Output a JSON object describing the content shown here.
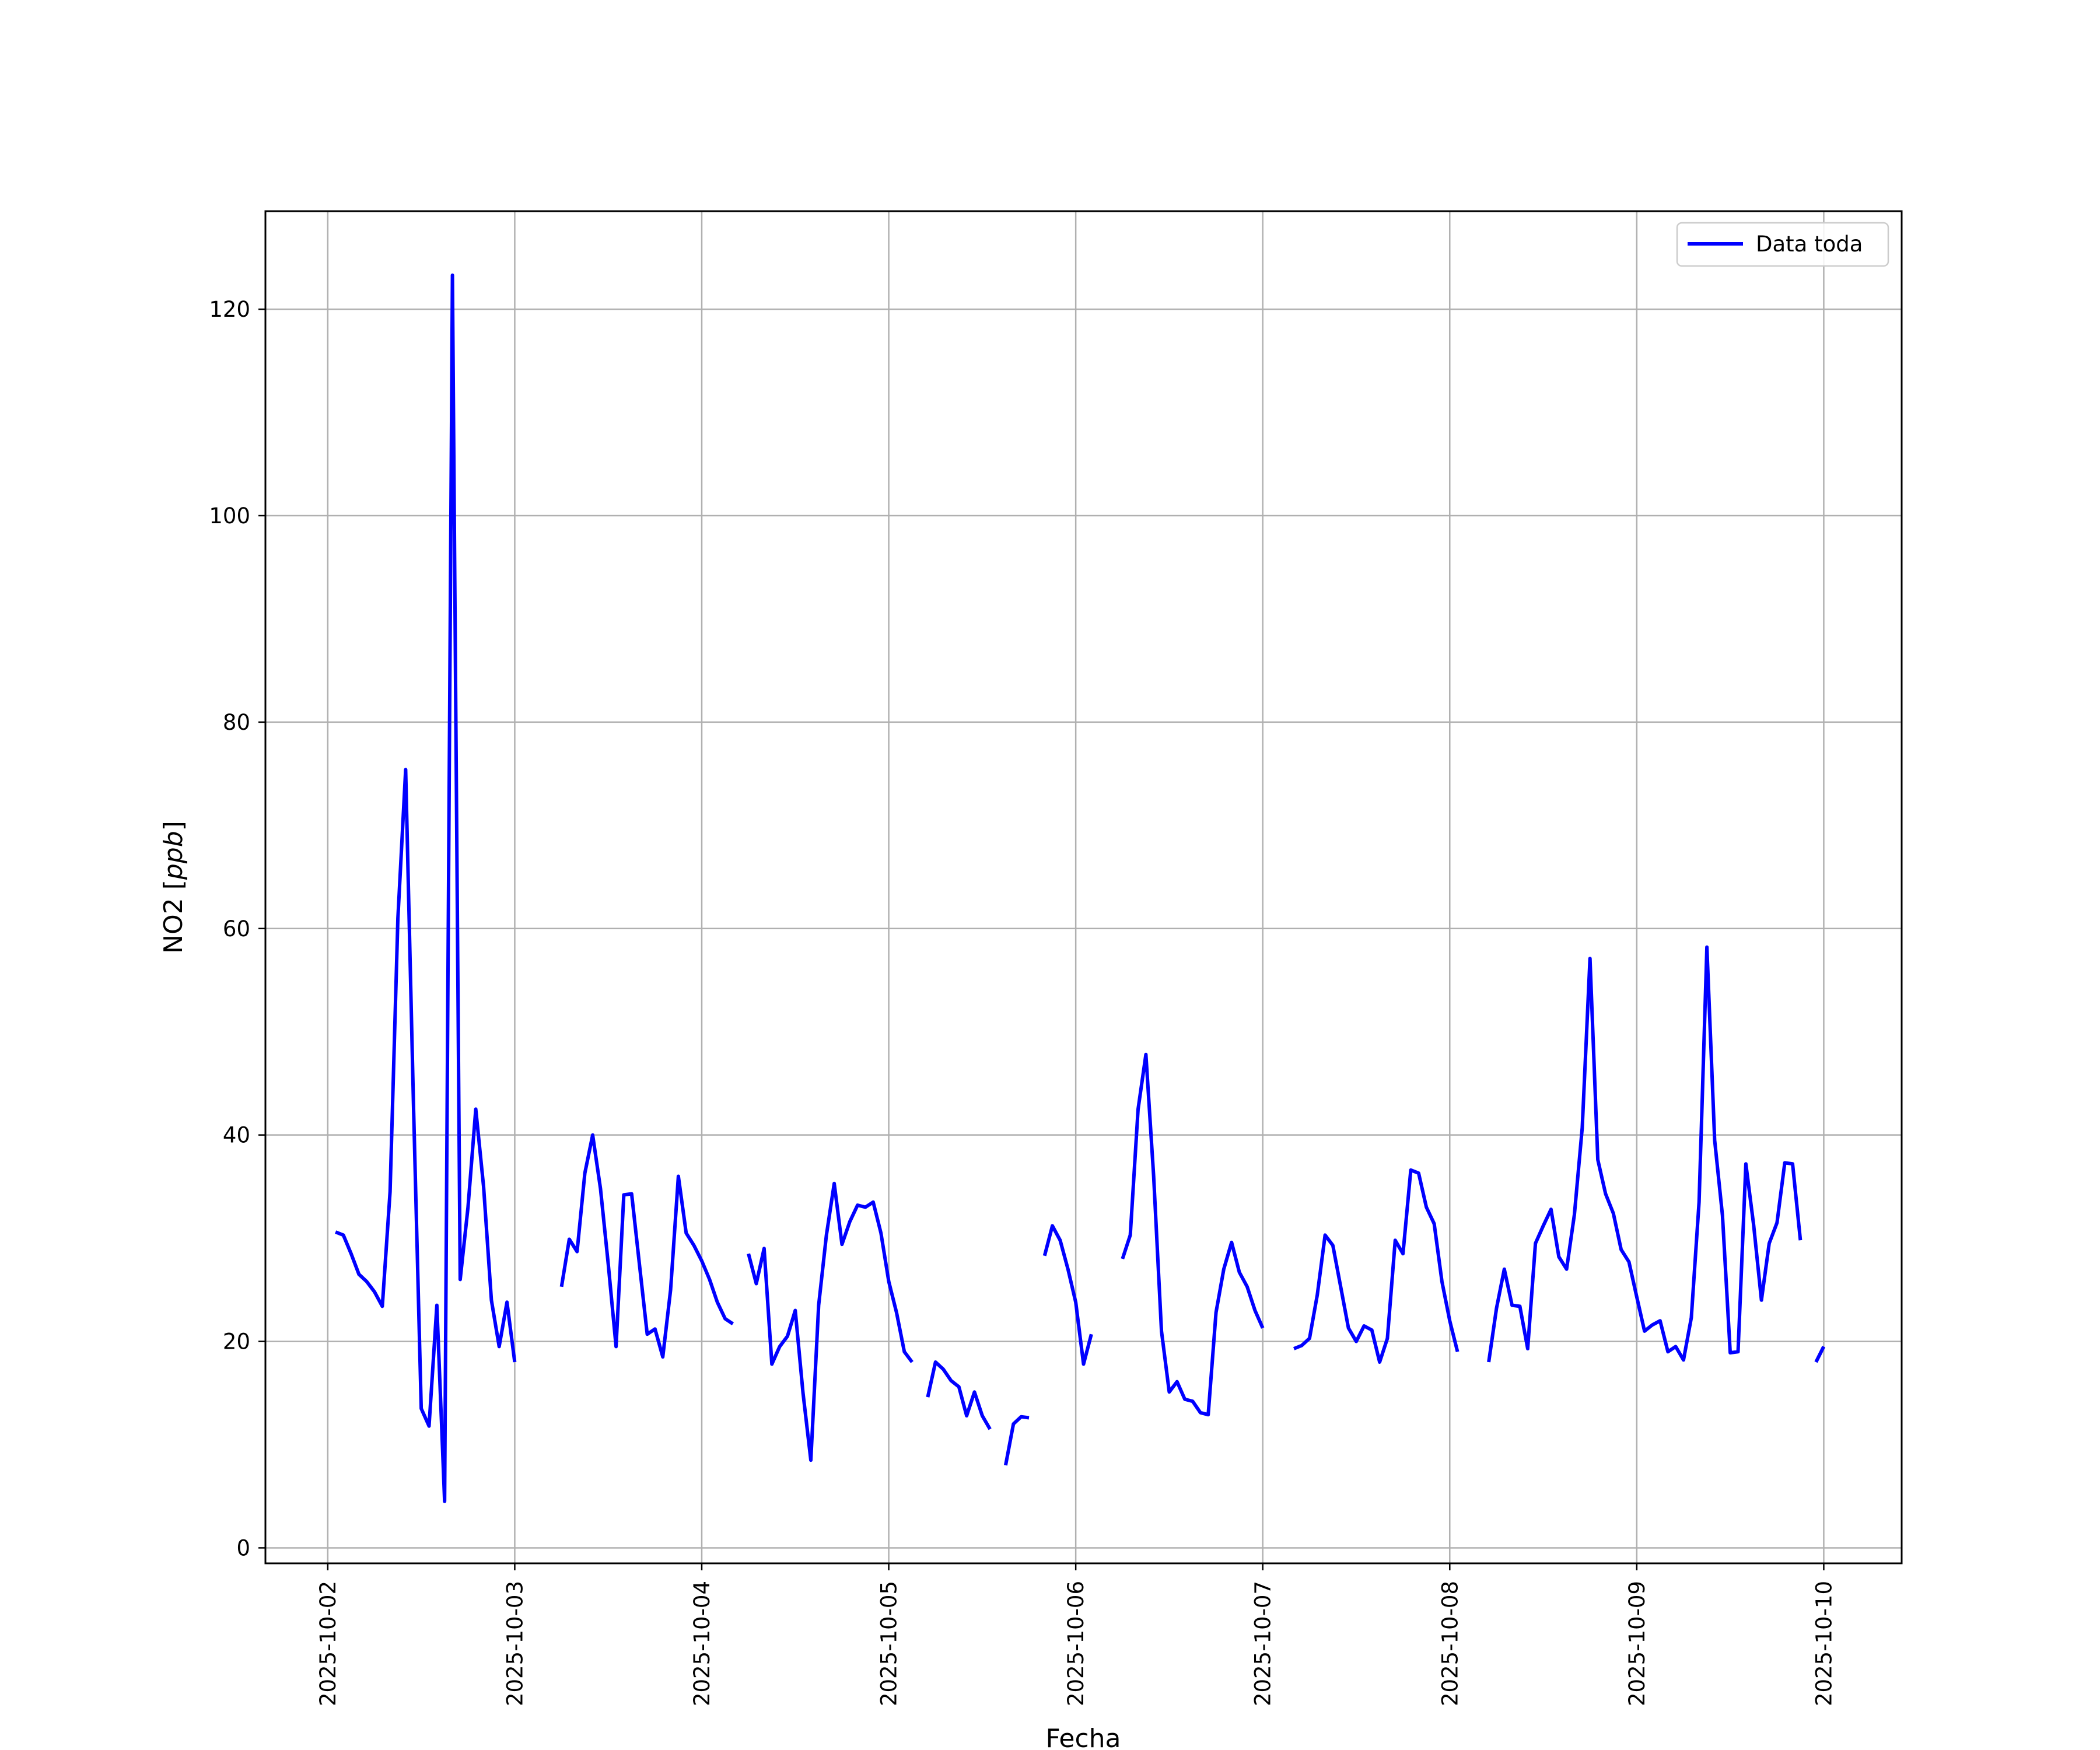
{
  "chart_data": {
    "type": "line",
    "title": "",
    "xlabel": "Fecha",
    "ylabel": "NO2 [ppb]",
    "ylabel_parts": {
      "prefix": "NO2 [",
      "unit": "ppb",
      "suffix": "]"
    },
    "xlim": [
      "2025-10-01 16:00",
      "2025-10-10 10:00"
    ],
    "ylim": [
      -1.5,
      129.5
    ],
    "x_ticks": [
      "2025-10-02",
      "2025-10-03",
      "2025-10-04",
      "2025-10-05",
      "2025-10-06",
      "2025-10-07",
      "2025-10-08",
      "2025-10-09",
      "2025-10-10"
    ],
    "y_ticks": [
      0,
      20,
      40,
      60,
      80,
      100,
      120
    ],
    "grid": true,
    "legend": {
      "position": "top-right",
      "entries": [
        {
          "label": "Data toda",
          "color": "#0000ff"
        }
      ]
    },
    "series": [
      {
        "name": "Data toda",
        "color": "#0000ff",
        "segments": [
          [
            [
              "2025-10-02 01:00",
              30.6
            ],
            [
              "2025-10-02 02:00",
              30.3
            ],
            [
              "2025-10-02 03:00",
              28.5
            ],
            [
              "2025-10-02 04:00",
              26.5
            ],
            [
              "2025-10-02 05:00",
              25.8
            ],
            [
              "2025-10-02 06:00",
              24.8
            ],
            [
              "2025-10-02 07:00",
              23.4
            ],
            [
              "2025-10-02 08:00",
              34.5
            ],
            [
              "2025-10-02 09:00",
              61.0
            ],
            [
              "2025-10-02 10:00",
              75.4
            ],
            [
              "2025-10-02 11:00",
              43.0
            ],
            [
              "2025-10-02 12:00",
              13.5
            ],
            [
              "2025-10-02 13:00",
              11.8
            ],
            [
              "2025-10-02 14:00",
              23.5
            ],
            [
              "2025-10-02 15:00",
              4.5
            ],
            [
              "2025-10-02 16:00",
              123.3
            ],
            [
              "2025-10-02 17:00",
              26.0
            ],
            [
              "2025-10-02 18:00",
              33.0
            ],
            [
              "2025-10-02 19:00",
              42.5
            ],
            [
              "2025-10-02 20:00",
              35.0
            ],
            [
              "2025-10-02 21:00",
              24.0
            ],
            [
              "2025-10-02 22:00",
              19.5
            ],
            [
              "2025-10-02 23:00",
              23.8
            ],
            [
              "2025-10-03 00:00",
              18.0
            ]
          ],
          [
            [
              "2025-10-03 06:00",
              25.3
            ],
            [
              "2025-10-03 07:00",
              29.9
            ],
            [
              "2025-10-03 08:00",
              28.7
            ],
            [
              "2025-10-03 09:00",
              36.3
            ],
            [
              "2025-10-03 10:00",
              40.0
            ],
            [
              "2025-10-03 11:00",
              34.8
            ],
            [
              "2025-10-03 12:00",
              27.5
            ],
            [
              "2025-10-03 13:00",
              19.5
            ],
            [
              "2025-10-03 14:00",
              34.2
            ],
            [
              "2025-10-03 15:00",
              34.3
            ],
            [
              "2025-10-03 16:00",
              27.5
            ],
            [
              "2025-10-03 17:00",
              20.7
            ],
            [
              "2025-10-03 18:00",
              21.2
            ],
            [
              "2025-10-03 19:00",
              18.5
            ],
            [
              "2025-10-03 20:00",
              25.0
            ],
            [
              "2025-10-03 21:00",
              36.0
            ],
            [
              "2025-10-03 22:00",
              30.5
            ],
            [
              "2025-10-03 23:00",
              29.3
            ],
            [
              "2025-10-04 00:00",
              27.8
            ],
            [
              "2025-10-04 01:00",
              26.0
            ],
            [
              "2025-10-04 02:00",
              23.8
            ],
            [
              "2025-10-04 03:00",
              22.2
            ],
            [
              "2025-10-04 04:00",
              21.7
            ]
          ],
          [
            [
              "2025-10-04 06:00",
              28.5
            ],
            [
              "2025-10-04 07:00",
              25.6
            ],
            [
              "2025-10-04 08:00",
              29.0
            ],
            [
              "2025-10-04 09:00",
              17.8
            ],
            [
              "2025-10-04 10:00",
              19.5
            ],
            [
              "2025-10-04 11:00",
              20.5
            ],
            [
              "2025-10-04 12:00",
              23.0
            ],
            [
              "2025-10-04 13:00",
              15.0
            ],
            [
              "2025-10-04 14:00",
              8.5
            ],
            [
              "2025-10-04 15:00",
              23.5
            ],
            [
              "2025-10-04 16:00",
              30.3
            ],
            [
              "2025-10-04 17:00",
              35.3
            ],
            [
              "2025-10-04 18:00",
              29.4
            ],
            [
              "2025-10-04 19:00",
              31.6
            ],
            [
              "2025-10-04 20:00",
              33.2
            ],
            [
              "2025-10-04 21:00",
              33.0
            ],
            [
              "2025-10-04 22:00",
              33.5
            ],
            [
              "2025-10-04 23:00",
              30.5
            ],
            [
              "2025-10-05 00:00",
              25.8
            ],
            [
              "2025-10-05 01:00",
              22.8
            ],
            [
              "2025-10-05 02:00",
              19.0
            ],
            [
              "2025-10-05 03:00",
              18.0
            ]
          ],
          [
            [
              "2025-10-05 05:00",
              14.6
            ],
            [
              "2025-10-05 06:00",
              18.0
            ],
            [
              "2025-10-05 07:00",
              17.3
            ],
            [
              "2025-10-05 08:00",
              16.2
            ],
            [
              "2025-10-05 09:00",
              15.6
            ],
            [
              "2025-10-05 10:00",
              12.8
            ],
            [
              "2025-10-05 11:00",
              15.1
            ],
            [
              "2025-10-05 12:00",
              12.8
            ],
            [
              "2025-10-05 13:00",
              11.5
            ]
          ],
          [
            [
              "2025-10-05 15:00",
              8.0
            ],
            [
              "2025-10-05 16:00",
              12.0
            ],
            [
              "2025-10-05 17:00",
              12.7
            ],
            [
              "2025-10-05 18:00",
              12.6
            ]
          ],
          [
            [
              "2025-10-05 20:00",
              28.3
            ],
            [
              "2025-10-05 21:00",
              31.2
            ],
            [
              "2025-10-05 22:00",
              29.8
            ],
            [
              "2025-10-05 23:00",
              27.0
            ],
            [
              "2025-10-06 00:00",
              23.8
            ],
            [
              "2025-10-06 01:00",
              17.8
            ],
            [
              "2025-10-06 02:00",
              20.7
            ]
          ],
          [
            [
              "2025-10-06 06:00",
              28.0
            ],
            [
              "2025-10-06 07:00",
              30.3
            ],
            [
              "2025-10-06 08:00",
              42.5
            ],
            [
              "2025-10-06 09:00",
              47.8
            ],
            [
              "2025-10-06 10:00",
              36.0
            ],
            [
              "2025-10-06 11:00",
              21.0
            ],
            [
              "2025-10-06 12:00",
              15.1
            ],
            [
              "2025-10-06 13:00",
              16.1
            ],
            [
              "2025-10-06 14:00",
              14.4
            ],
            [
              "2025-10-06 15:00",
              14.2
            ],
            [
              "2025-10-06 16:00",
              13.1
            ],
            [
              "2025-10-06 17:00",
              12.9
            ],
            [
              "2025-10-06 18:00",
              22.8
            ],
            [
              "2025-10-06 19:00",
              27.0
            ],
            [
              "2025-10-06 20:00",
              29.6
            ],
            [
              "2025-10-06 21:00",
              26.7
            ],
            [
              "2025-10-06 22:00",
              25.3
            ],
            [
              "2025-10-06 23:00",
              23.0
            ],
            [
              "2025-10-07 00:00",
              21.3
            ]
          ],
          [
            [
              "2025-10-07 04:00",
              19.3
            ],
            [
              "2025-10-07 05:00",
              19.6
            ],
            [
              "2025-10-07 06:00",
              20.3
            ],
            [
              "2025-10-07 07:00",
              24.5
            ],
            [
              "2025-10-07 08:00",
              30.3
            ],
            [
              "2025-10-07 09:00",
              29.3
            ],
            [
              "2025-10-07 10:00",
              25.3
            ],
            [
              "2025-10-07 11:00",
              21.3
            ],
            [
              "2025-10-07 12:00",
              20.0
            ],
            [
              "2025-10-07 13:00",
              21.5
            ],
            [
              "2025-10-07 14:00",
              21.1
            ],
            [
              "2025-10-07 15:00",
              18.0
            ],
            [
              "2025-10-07 16:00",
              20.3
            ],
            [
              "2025-10-07 17:00",
              29.8
            ],
            [
              "2025-10-07 18:00",
              28.5
            ],
            [
              "2025-10-07 19:00",
              36.6
            ],
            [
              "2025-10-07 20:00",
              36.3
            ],
            [
              "2025-10-07 21:00",
              33.0
            ],
            [
              "2025-10-07 22:00",
              31.4
            ],
            [
              "2025-10-07 23:00",
              25.8
            ],
            [
              "2025-10-08 00:00",
              22.0
            ],
            [
              "2025-10-08 01:00",
              19.0
            ]
          ],
          [
            [
              "2025-10-08 05:00",
              18.0
            ],
            [
              "2025-10-08 06:00",
              23.2
            ],
            [
              "2025-10-08 07:00",
              27.0
            ],
            [
              "2025-10-08 08:00",
              23.5
            ],
            [
              "2025-10-08 09:00",
              23.4
            ],
            [
              "2025-10-08 10:00",
              19.3
            ],
            [
              "2025-10-08 11:00",
              29.5
            ],
            [
              "2025-10-08 12:00",
              31.2
            ],
            [
              "2025-10-08 13:00",
              32.8
            ],
            [
              "2025-10-08 14:00",
              28.2
            ],
            [
              "2025-10-08 15:00",
              27.0
            ],
            [
              "2025-10-08 16:00",
              32.3
            ],
            [
              "2025-10-08 17:00",
              40.7
            ],
            [
              "2025-10-08 18:00",
              57.1
            ],
            [
              "2025-10-08 19:00",
              37.6
            ],
            [
              "2025-10-08 20:00",
              34.3
            ],
            [
              "2025-10-08 21:00",
              32.4
            ],
            [
              "2025-10-08 22:00",
              28.9
            ],
            [
              "2025-10-08 23:00",
              27.7
            ],
            [
              "2025-10-09 00:00",
              24.3
            ],
            [
              "2025-10-09 01:00",
              21.0
            ],
            [
              "2025-10-09 02:00",
              21.6
            ],
            [
              "2025-10-09 03:00",
              22.0
            ],
            [
              "2025-10-09 04:00",
              19.0
            ],
            [
              "2025-10-09 05:00",
              19.5
            ],
            [
              "2025-10-09 06:00",
              18.2
            ],
            [
              "2025-10-09 07:00",
              22.3
            ],
            [
              "2025-10-09 08:00",
              33.5
            ],
            [
              "2025-10-09 09:00",
              58.2
            ],
            [
              "2025-10-09 10:00",
              39.5
            ],
            [
              "2025-10-09 11:00",
              32.2
            ],
            [
              "2025-10-09 12:00",
              18.9
            ],
            [
              "2025-10-09 13:00",
              19.0
            ],
            [
              "2025-10-09 14:00",
              37.2
            ],
            [
              "2025-10-09 15:00",
              31.3
            ],
            [
              "2025-10-09 16:00",
              24.0
            ],
            [
              "2025-10-09 17:00",
              29.5
            ],
            [
              "2025-10-09 18:00",
              31.5
            ],
            [
              "2025-10-09 19:00",
              37.3
            ],
            [
              "2025-10-09 20:00",
              37.2
            ],
            [
              "2025-10-09 21:00",
              29.8
            ]
          ],
          [
            [
              "2025-10-09 23:00",
              18.0
            ],
            [
              "2025-10-10 00:00",
              19.5
            ]
          ]
        ]
      }
    ]
  }
}
